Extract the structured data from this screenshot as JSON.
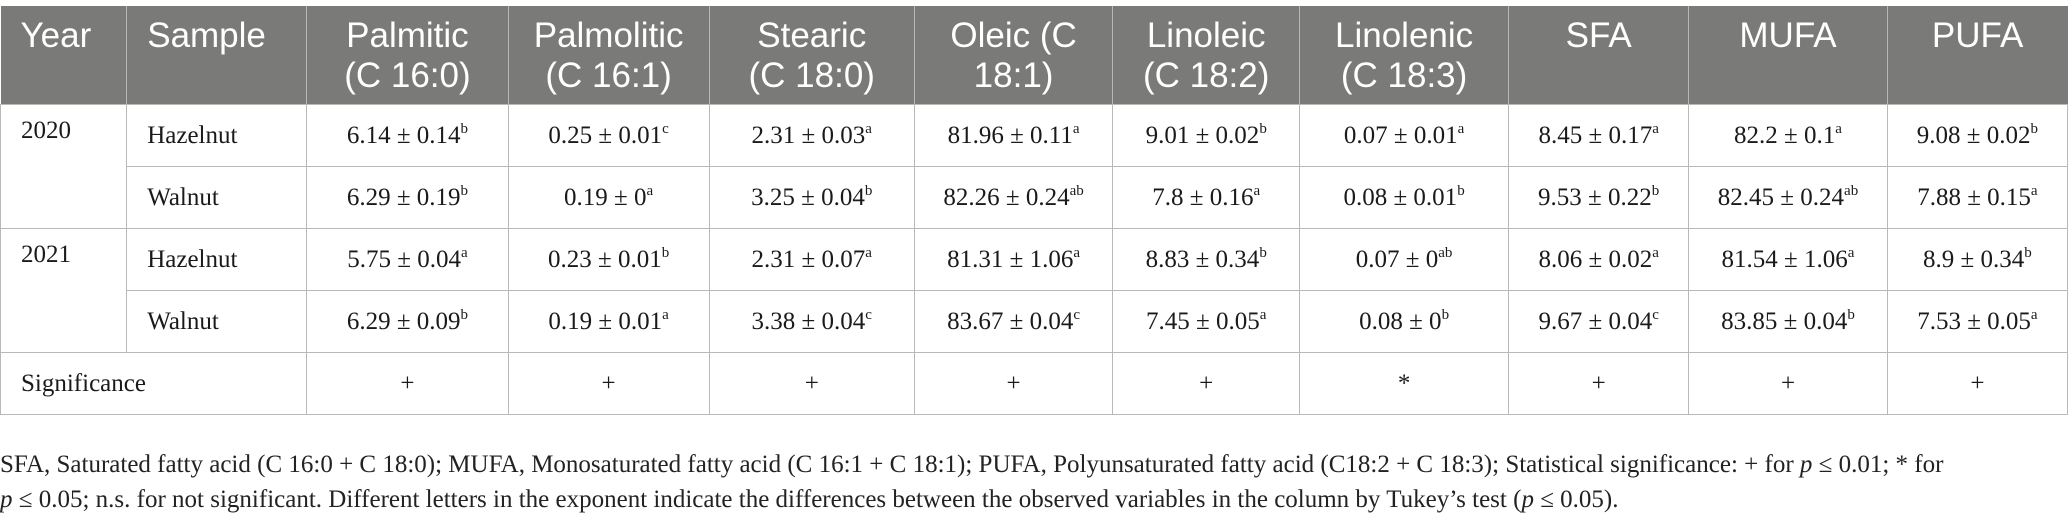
{
  "table": {
    "headers": [
      {
        "line1": "Year",
        "line2": ""
      },
      {
        "line1": "Sample",
        "line2": ""
      },
      {
        "line1": "Palmitic",
        "line2": "(C 16:0)"
      },
      {
        "line1": "Palmolitic",
        "line2": "(C 16:1)"
      },
      {
        "line1": "Stearic",
        "line2": "(C 18:0)"
      },
      {
        "line1": "Oleic (C",
        "line2": "18:1)"
      },
      {
        "line1": "Linoleic",
        "line2": "(C 18:2)"
      },
      {
        "line1": "Linolenic",
        "line2": "(C 18:3)"
      },
      {
        "line1": "SFA",
        "line2": ""
      },
      {
        "line1": "MUFA",
        "line2": ""
      },
      {
        "line1": "PUFA",
        "line2": ""
      }
    ],
    "groups": [
      {
        "year": "2020",
        "rows": [
          {
            "sample": "Hazelnut",
            "cells": [
              {
                "v": "6.14 ± 0.14",
                "s": "b"
              },
              {
                "v": "0.25 ± 0.01",
                "s": "c"
              },
              {
                "v": "2.31 ± 0.03",
                "s": "a"
              },
              {
                "v": "81.96 ± 0.11",
                "s": "a"
              },
              {
                "v": "9.01 ± 0.02",
                "s": "b"
              },
              {
                "v": "0.07 ± 0.01",
                "s": "a"
              },
              {
                "v": "8.45 ± 0.17",
                "s": "a"
              },
              {
                "v": "82.2 ± 0.1",
                "s": "a"
              },
              {
                "v": "9.08 ± 0.02",
                "s": "b"
              }
            ]
          },
          {
            "sample": "Walnut",
            "cells": [
              {
                "v": "6.29 ± 0.19",
                "s": "b"
              },
              {
                "v": "0.19 ± 0",
                "s": "a"
              },
              {
                "v": "3.25 ± 0.04",
                "s": "b"
              },
              {
                "v": "82.26 ± 0.24",
                "s": "ab"
              },
              {
                "v": "7.8 ± 0.16",
                "s": "a"
              },
              {
                "v": "0.08 ± 0.01",
                "s": "b"
              },
              {
                "v": "9.53 ± 0.22",
                "s": "b"
              },
              {
                "v": "82.45 ± 0.24",
                "s": "ab"
              },
              {
                "v": "7.88 ± 0.15",
                "s": "a"
              }
            ]
          }
        ]
      },
      {
        "year": "2021",
        "rows": [
          {
            "sample": "Hazelnut",
            "cells": [
              {
                "v": "5.75 ± 0.04",
                "s": "a"
              },
              {
                "v": "0.23 ± 0.01",
                "s": "b"
              },
              {
                "v": "2.31 ± 0.07",
                "s": "a"
              },
              {
                "v": "81.31 ± 1.06",
                "s": "a"
              },
              {
                "v": "8.83 ± 0.34",
                "s": "b"
              },
              {
                "v": "0.07 ± 0",
                "s": "ab"
              },
              {
                "v": "8.06 ± 0.02",
                "s": "a"
              },
              {
                "v": "81.54 ± 1.06",
                "s": "a"
              },
              {
                "v": "8.9 ± 0.34",
                "s": "b"
              }
            ]
          },
          {
            "sample": "Walnut",
            "cells": [
              {
                "v": "6.29 ± 0.09",
                "s": "b"
              },
              {
                "v": "0.19 ± 0.01",
                "s": "a"
              },
              {
                "v": "3.38 ± 0.04",
                "s": "c"
              },
              {
                "v": "83.67 ± 0.04",
                "s": "c"
              },
              {
                "v": "7.45 ± 0.05",
                "s": "a"
              },
              {
                "v": "0.08 ± 0",
                "s": "b"
              },
              {
                "v": "9.67 ± 0.04",
                "s": "c"
              },
              {
                "v": "83.85 ± 0.04",
                "s": "b"
              },
              {
                "v": "7.53 ± 0.05",
                "s": "a"
              }
            ]
          }
        ]
      }
    ],
    "significance": {
      "label": "Significance",
      "values": [
        "+",
        "+",
        "+",
        "+",
        "+",
        "*",
        "+",
        "+",
        "+"
      ]
    }
  },
  "footnote": {
    "line1": "SFA, Saturated fatty acid (C 16:0 + C 18:0); MUFA, Monosaturated fatty acid (C 16:1 + C 18:1); PUFA, Polyunsaturated fatty acid (C18:2 + C 18:3); Statistical significance: + for p ≤ 0.01; * for",
    "line2": "p ≤ 0.05; n.s. for not significant. Different letters in the exponent indicate the differences between the observed variables in the column by Tukey’s test (p ≤ 0.05)."
  }
}
